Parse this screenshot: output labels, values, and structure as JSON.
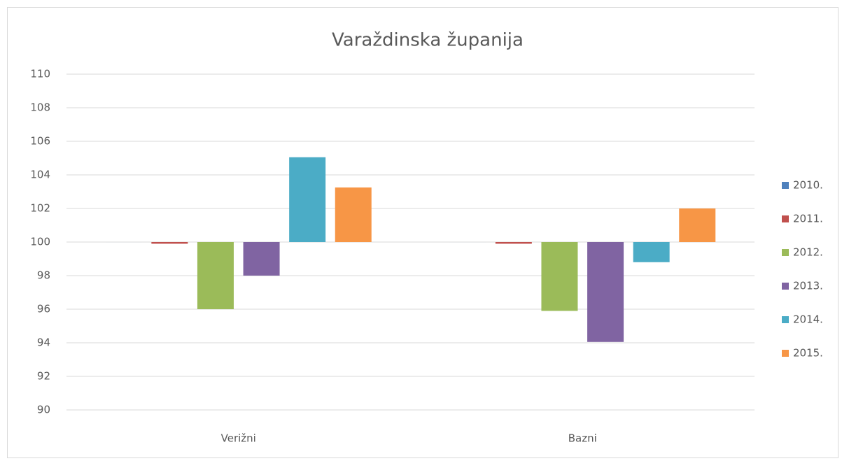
{
  "chart_data": {
    "type": "bar",
    "title": "Varaždinska županija",
    "categories": [
      "Verižni",
      "Bazni"
    ],
    "series": [
      {
        "name": "2010.",
        "color": "#4f81bd",
        "values": [
          100,
          100
        ]
      },
      {
        "name": "2011.",
        "color": "#c0504d",
        "values": [
          99.9,
          99.9
        ]
      },
      {
        "name": "2012.",
        "color": "#9bbb59",
        "values": [
          96.0,
          95.9
        ]
      },
      {
        "name": "2013.",
        "color": "#8064a2",
        "values": [
          98.0,
          94.05
        ]
      },
      {
        "name": "2014.",
        "color": "#4bacc6",
        "values": [
          105.05,
          98.8
        ]
      },
      {
        "name": "2015.",
        "color": "#f79646",
        "values": [
          103.25,
          102.0
        ]
      }
    ],
    "ylim": [
      90,
      110
    ],
    "yticks": [
      90,
      92,
      94,
      96,
      98,
      100,
      102,
      104,
      106,
      108,
      110
    ],
    "y_origin": 100,
    "grid": true,
    "legend": "right"
  }
}
